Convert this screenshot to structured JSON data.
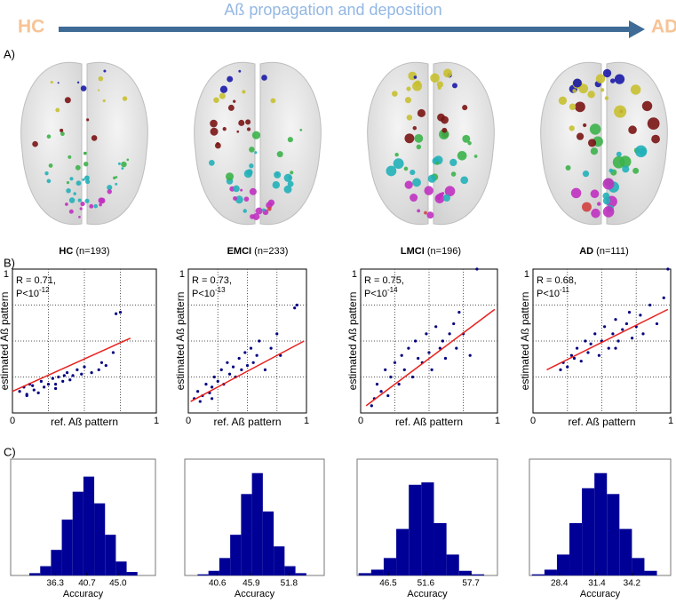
{
  "header": {
    "left": "HC",
    "right": "AD",
    "title": "Aß propagation and deposition"
  },
  "panel_labels": [
    "A)",
    "B)",
    "C)"
  ],
  "groups": [
    {
      "name": "HC",
      "n": "(n=193)"
    },
    {
      "name": "EMCI",
      "n": "(n=233)"
    },
    {
      "name": "LMCI",
      "n": "(n=196)"
    },
    {
      "name": "AD",
      "n": "(n=111)"
    }
  ],
  "chart_data": [
    {
      "type": "scatter",
      "xlabel": "ref. Aß pattern",
      "ylabel": "estimated Aß pattern",
      "r_text": "R = 0.71,",
      "p_text": "P<10",
      "p_exponent": "-12",
      "xlim": [
        0,
        1
      ],
      "ylim": [
        0,
        1
      ],
      "xticks": [
        0,
        1
      ],
      "yticks": [
        1
      ],
      "grid": [
        0.25,
        0.5,
        0.75
      ],
      "color": "#000080",
      "fit_color": "#e8201c",
      "x": [
        0.05,
        0.08,
        0.1,
        0.12,
        0.15,
        0.18,
        0.2,
        0.22,
        0.25,
        0.28,
        0.3,
        0.32,
        0.35,
        0.38,
        0.4,
        0.42,
        0.45,
        0.48,
        0.5,
        0.55,
        0.6,
        0.62,
        0.65,
        0.7,
        0.75,
        0.72,
        0.1,
        0.14,
        0.3,
        0.36
      ],
      "values": [
        0.15,
        0.18,
        0.12,
        0.2,
        0.16,
        0.14,
        0.22,
        0.18,
        0.2,
        0.24,
        0.17,
        0.25,
        0.22,
        0.28,
        0.23,
        0.26,
        0.3,
        0.27,
        0.32,
        0.28,
        0.3,
        0.35,
        0.33,
        0.42,
        0.7,
        0.69,
        0.13,
        0.19,
        0.2,
        0.26
      ],
      "fit": {
        "x": [
          0,
          0.82
        ],
        "y": [
          0.15,
          0.52
        ]
      }
    },
    {
      "type": "scatter",
      "xlabel": "ref. Aß pattern",
      "ylabel": "estimated Aß pattern",
      "r_text": "R = 0.73,",
      "p_text": "P<10",
      "p_exponent": "-13",
      "xlim": [
        0,
        1
      ],
      "ylim": [
        0,
        1
      ],
      "xticks": [
        0,
        1
      ],
      "yticks": [
        1
      ],
      "grid": [
        0.25,
        0.5,
        0.75
      ],
      "color": "#000080",
      "fit_color": "#e8201c",
      "x": [
        0.05,
        0.08,
        0.1,
        0.12,
        0.15,
        0.18,
        0.2,
        0.22,
        0.25,
        0.28,
        0.3,
        0.33,
        0.35,
        0.38,
        0.4,
        0.43,
        0.45,
        0.48,
        0.5,
        0.53,
        0.55,
        0.58,
        0.6,
        0.65,
        0.7,
        0.75,
        0.78,
        0.9,
        0.92,
        0.2
      ],
      "values": [
        0.1,
        0.15,
        0.08,
        0.12,
        0.2,
        0.14,
        0.18,
        0.25,
        0.22,
        0.3,
        0.2,
        0.35,
        0.27,
        0.32,
        0.25,
        0.38,
        0.3,
        0.42,
        0.33,
        0.45,
        0.35,
        0.4,
        0.5,
        0.3,
        0.45,
        0.55,
        0.4,
        0.73,
        0.75,
        0.1
      ],
      "fit": {
        "x": [
          0.02,
          0.98
        ],
        "y": [
          0.08,
          0.5
        ]
      }
    },
    {
      "type": "scatter",
      "xlabel": "ref. Aß pattern",
      "ylabel": "estimated Aß pattern",
      "r_text": "R = 0.75,",
      "p_text": "P<10",
      "p_exponent": "-14",
      "xlim": [
        0,
        1
      ],
      "ylim": [
        0,
        1
      ],
      "xticks": [
        0,
        1
      ],
      "yticks": [
        1
      ],
      "grid": [
        0.25,
        0.5,
        0.75
      ],
      "color": "#000080",
      "fit_color": "#e8201c",
      "x": [
        0.08,
        0.1,
        0.12,
        0.15,
        0.18,
        0.2,
        0.22,
        0.25,
        0.28,
        0.3,
        0.32,
        0.35,
        0.38,
        0.4,
        0.42,
        0.45,
        0.48,
        0.5,
        0.52,
        0.55,
        0.58,
        0.6,
        0.62,
        0.65,
        0.68,
        0.7,
        0.72,
        0.75,
        0.8,
        0.85
      ],
      "values": [
        0.05,
        0.1,
        0.2,
        0.15,
        0.3,
        0.12,
        0.25,
        0.35,
        0.2,
        0.4,
        0.3,
        0.45,
        0.25,
        0.5,
        0.38,
        0.35,
        0.55,
        0.42,
        0.3,
        0.6,
        0.45,
        0.5,
        0.38,
        0.55,
        0.62,
        0.45,
        0.7,
        0.55,
        0.4,
        1.0
      ],
      "fit": {
        "x": [
          0.04,
          0.98
        ],
        "y": [
          0.05,
          0.72
        ]
      }
    },
    {
      "type": "scatter",
      "xlabel": "ref. Aß pattern",
      "ylabel": "estimated Aß pattern",
      "r_text": "R = 0.68,",
      "p_text": "P<10",
      "p_exponent": "-11",
      "xlim": [
        0,
        1
      ],
      "ylim": [
        0,
        1
      ],
      "xticks": [
        0,
        1
      ],
      "yticks": [
        1
      ],
      "grid": [
        0.25,
        0.5,
        0.75
      ],
      "color": "#000080",
      "fit_color": "#e8201c",
      "x": [
        0.2,
        0.22,
        0.25,
        0.28,
        0.3,
        0.32,
        0.35,
        0.38,
        0.4,
        0.42,
        0.45,
        0.48,
        0.5,
        0.52,
        0.55,
        0.58,
        0.6,
        0.62,
        0.65,
        0.68,
        0.7,
        0.72,
        0.75,
        0.78,
        0.8,
        0.85,
        0.9,
        0.95,
        0.98,
        0.6
      ],
      "values": [
        0.3,
        0.35,
        0.32,
        0.4,
        0.38,
        0.45,
        0.36,
        0.5,
        0.42,
        0.48,
        0.55,
        0.4,
        0.5,
        0.6,
        0.45,
        0.55,
        0.65,
        0.5,
        0.58,
        0.62,
        0.7,
        0.52,
        0.6,
        0.68,
        0.55,
        0.75,
        0.62,
        0.8,
        1.0,
        0.45
      ],
      "fit": {
        "x": [
          0.1,
          0.98
        ],
        "y": [
          0.3,
          0.72
        ]
      }
    },
    {
      "type": "histogram",
      "xlabel": "Accuracy",
      "xlim": [
        30.1,
        50.2
      ],
      "ylim": [
        0,
        100
      ],
      "xticks": [
        36.3,
        40.7,
        {
          "value": 45,
          "label": "45.0"
        }
      ],
      "color": "#000096",
      "bins": [
        32.7,
        34.2,
        35.7,
        37.2,
        38.7,
        40.2,
        41.7,
        43.2,
        44.7,
        46.2,
        47.7
      ],
      "values": [
        2,
        8,
        22,
        48,
        72,
        85,
        62,
        35,
        12,
        3
      ]
    },
    {
      "type": "histogram",
      "xlabel": "Accuracy",
      "xlim": [
        35.5,
        57.3
      ],
      "ylim": [
        0,
        100
      ],
      "xticks": [
        40.6,
        45.9,
        51.8
      ],
      "color": "#000096",
      "bins": [
        37.5,
        39.2,
        40.9,
        42.6,
        44.3,
        46.0,
        47.7,
        49.4,
        51.1,
        52.8,
        54.5
      ],
      "values": [
        1,
        4,
        15,
        35,
        70,
        88,
        55,
        25,
        8,
        2
      ]
    },
    {
      "type": "histogram",
      "xlabel": "Accuracy",
      "xlim": [
        42.3,
        61.3
      ],
      "ylim": [
        0,
        100
      ],
      "xticks": [
        46.5,
        51.6,
        57.7
      ],
      "color": "#000096",
      "bins": [
        42.5,
        44.2,
        45.9,
        47.6,
        49.3,
        51,
        52.7,
        54.4,
        56.1,
        57.8,
        59.5
      ],
      "values": [
        2,
        5,
        15,
        40,
        78,
        80,
        45,
        18,
        4,
        1
      ]
    },
    {
      "type": "histogram",
      "xlabel": "Accuracy",
      "xlim": [
        26.0,
        37.3
      ],
      "ylim": [
        0,
        100
      ],
      "xticks": [
        28.4,
        31.4,
        34.2
      ],
      "color": "#000096",
      "bins": [
        26.2,
        27.2,
        28.2,
        29.2,
        30.2,
        31.2,
        32.2,
        33.2,
        34.2,
        35.2,
        36.2
      ],
      "values": [
        1,
        5,
        18,
        45,
        75,
        88,
        70,
        40,
        15,
        4
      ]
    }
  ]
}
